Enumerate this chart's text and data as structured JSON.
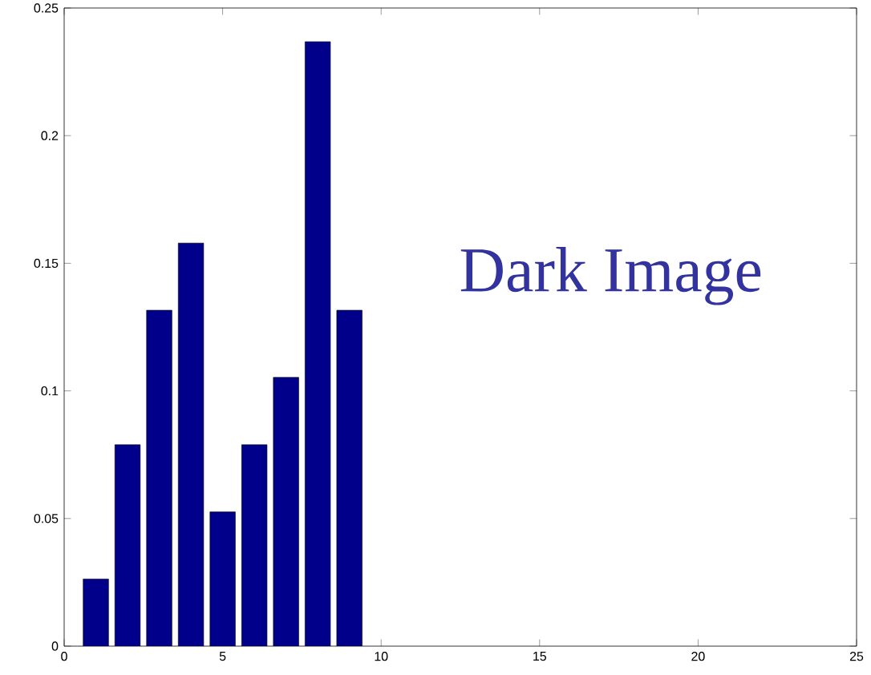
{
  "chart_data": {
    "type": "bar",
    "x": [
      1,
      2,
      3,
      4,
      5,
      6,
      7,
      8,
      9
    ],
    "values": [
      0.0263,
      0.0789,
      0.1316,
      0.1579,
      0.0526,
      0.0789,
      0.1053,
      0.2368,
      0.1316
    ],
    "color": "#00008b",
    "xlim": [
      0,
      25
    ],
    "xticks": [
      0,
      5,
      10,
      15,
      20,
      25
    ],
    "ylim": [
      0,
      0.25
    ],
    "yticks": [
      0,
      0.05,
      0.1,
      0.15,
      0.2,
      0.25
    ],
    "annotations": [
      "Dark Image"
    ]
  }
}
